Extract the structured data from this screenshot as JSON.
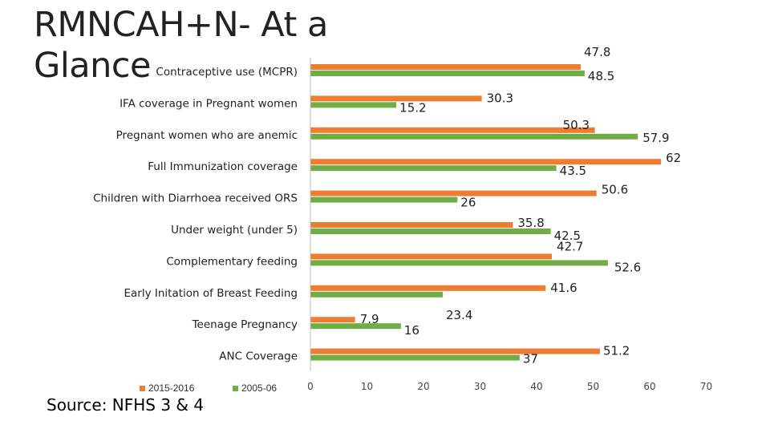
{
  "title": "RMNCAH+N- At a Glance",
  "source": "Source: NFHS 3 & 4",
  "colors": {
    "series_2015": "#ED7D31",
    "series_2005": "#70AD47",
    "axis": "#bfbfbf"
  },
  "chart_data": {
    "type": "bar",
    "orientation": "horizontal",
    "title": "",
    "xlabel": "",
    "ylabel": "",
    "xlim": [
      0,
      70
    ],
    "ticks": [
      "0",
      "10",
      "20",
      "30",
      "40",
      "50",
      "60",
      "70"
    ],
    "tick_values": [
      0,
      10,
      20,
      30,
      40,
      50,
      60,
      70
    ],
    "grid": false,
    "legend_position": "bottom-left",
    "categories": [
      "Contraceptive use (MCPR)",
      "IFA coverage in Pregnant women",
      "Pregnant women who are anemic",
      "Full Immunization coverage",
      "Children with Diarrhoea received ORS",
      "Under weight (under 5)",
      "Complementary feeding",
      "Early Initation of Breast Feeding",
      "Teenage Pregnancy",
      "ANC Coverage"
    ],
    "series": [
      {
        "name": "2015-2016",
        "color": "#ED7D31",
        "values": [
          47.8,
          30.3,
          50.3,
          62,
          50.6,
          35.8,
          42.7,
          41.6,
          7.9,
          51.2
        ],
        "labels": [
          "47.8",
          "30.3",
          "50.3",
          "62",
          "50.6",
          "35.8",
          "42.7",
          "41.6",
          "7.9",
          "51.2"
        ]
      },
      {
        "name": "2005-06",
        "color": "#70AD47",
        "values": [
          48.5,
          15.2,
          57.9,
          43.5,
          26,
          42.5,
          52.6,
          23.4,
          16,
          37
        ],
        "labels": [
          "48.5",
          "15.2",
          "57.9",
          "43.5",
          "26",
          "42.5",
          "52.6",
          "23.4",
          "16",
          "37"
        ]
      }
    ]
  }
}
